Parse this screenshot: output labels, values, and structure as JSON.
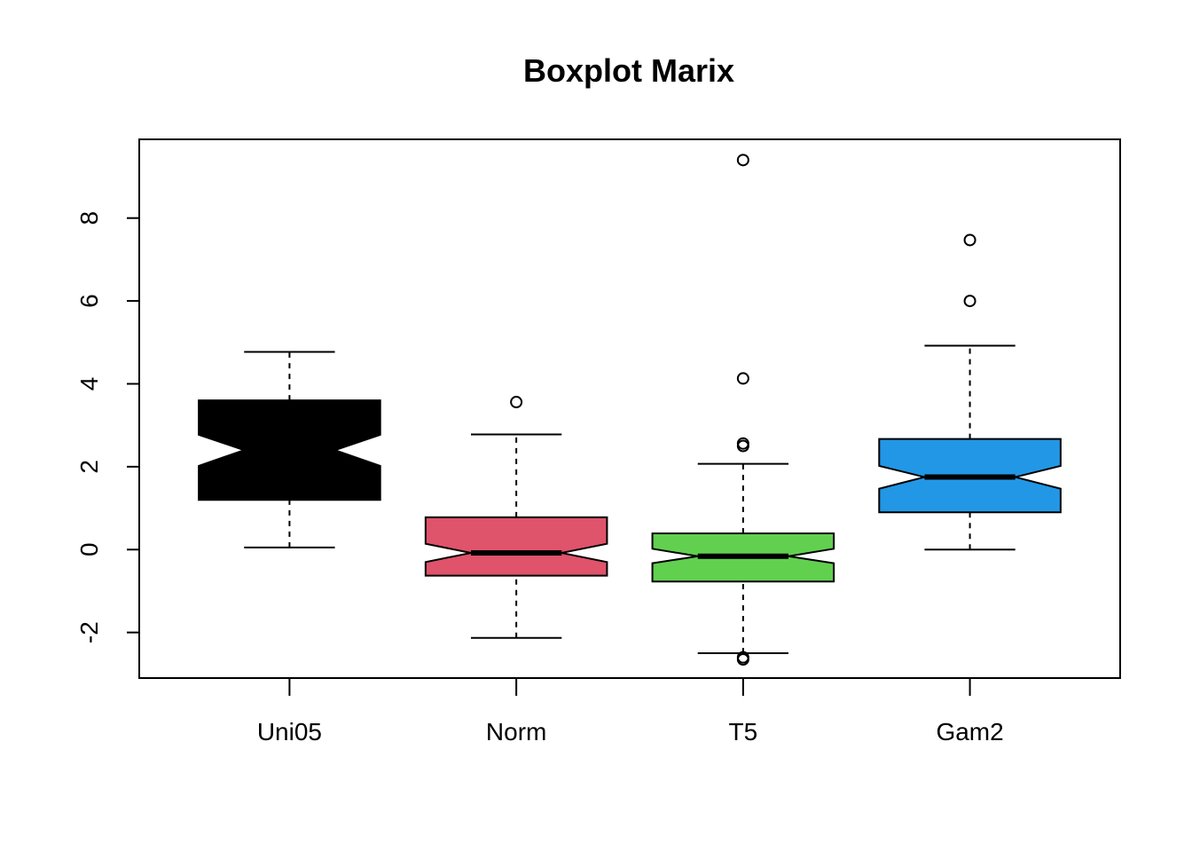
{
  "chart_data": {
    "type": "boxplot",
    "title": "Boxplot Marix",
    "xlabel": "",
    "ylabel": "",
    "ylim": [
      -3.1,
      9.9
    ],
    "yticks": [
      -2,
      0,
      2,
      4,
      6,
      8
    ],
    "notched": true,
    "grid": false,
    "legend": "none",
    "categories": [
      "Uni05",
      "Norm",
      "T5",
      "Gam2"
    ],
    "boxes": [
      {
        "category": "Uni05",
        "color": "#000000",
        "whisker_low": 0.05,
        "q1": 1.2,
        "median": 2.4,
        "q3": 3.6,
        "whisker_high": 4.77,
        "notch_low": 2.02,
        "notch_high": 2.77,
        "outliers": []
      },
      {
        "category": "Norm",
        "color": "#DF536B",
        "whisker_low": -2.13,
        "q1": -0.63,
        "median": -0.08,
        "q3": 0.78,
        "whisker_high": 2.78,
        "notch_low": -0.3,
        "notch_high": 0.14,
        "outliers": [
          3.56
        ]
      },
      {
        "category": "T5",
        "color": "#61D04F",
        "whisker_low": -2.5,
        "q1": -0.77,
        "median": -0.16,
        "q3": 0.39,
        "whisker_high": 2.07,
        "notch_low": -0.33,
        "notch_high": 0.02,
        "outliers": [
          -2.6,
          -2.65,
          2.5,
          2.56,
          4.13,
          9.4
        ]
      },
      {
        "category": "Gam2",
        "color": "#2297E6",
        "whisker_low": 0.0,
        "q1": 0.9,
        "median": 1.75,
        "q3": 2.67,
        "whisker_high": 4.92,
        "notch_low": 1.47,
        "notch_high": 2.02,
        "outliers": [
          6.0,
          7.47
        ]
      }
    ]
  }
}
